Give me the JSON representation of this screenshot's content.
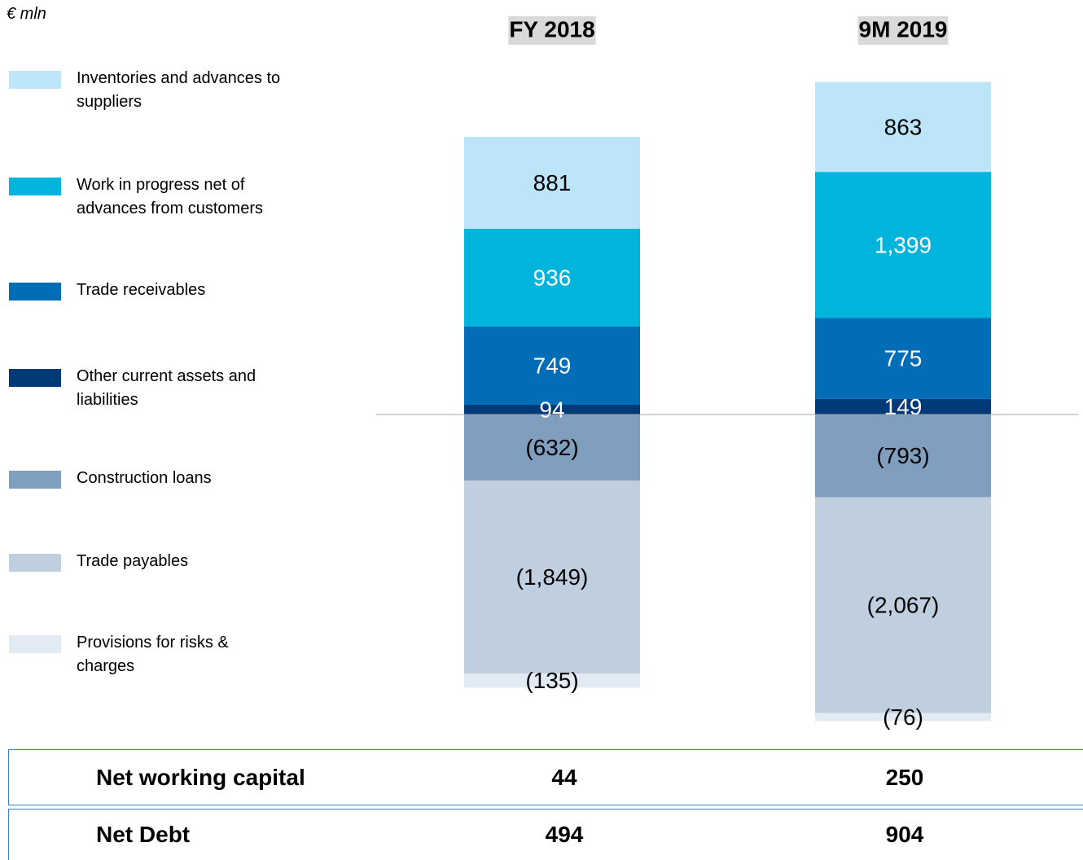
{
  "chart_data": {
    "type": "stacked_bar",
    "unit_label": "€ mln",
    "categories": [
      "FY 2018",
      "9M 2019"
    ],
    "series": [
      {
        "name": "Inventories and advances to suppliers",
        "color": "#bde5fa",
        "label_color": "#000000",
        "values": [
          881,
          863
        ],
        "value_labels": [
          "881",
          "863"
        ]
      },
      {
        "name": "Work in progress net of advances from customers",
        "color": "#00b4dc",
        "label_color": "#ffffff",
        "values": [
          936,
          1399
        ],
        "value_labels": [
          "936",
          "1,399"
        ]
      },
      {
        "name": "Trade receivables",
        "color": "#006db6",
        "label_color": "#ffffff",
        "values": [
          749,
          775
        ],
        "value_labels": [
          "749",
          "775"
        ]
      },
      {
        "name": "Other current assets and liabilities",
        "color": "#003a78",
        "label_color": "#ffffff",
        "values": [
          94,
          149
        ],
        "value_labels": [
          "94",
          "149"
        ]
      },
      {
        "name": "Construction loans",
        "color": "#809fbe",
        "label_color": "#000000",
        "values": [
          -632,
          -793
        ],
        "value_labels": [
          "(632)",
          "(793)"
        ]
      },
      {
        "name": "Trade payables",
        "color": "#bfcfdf",
        "label_color": "#000000",
        "values": [
          -1849,
          -2067
        ],
        "value_labels": [
          "(1,849)",
          "(2,067)"
        ]
      },
      {
        "name": "Provisions for risks & charges",
        "color": "#e2eaf3",
        "label_color": "#000000",
        "values": [
          -135,
          -76
        ],
        "value_labels": [
          "(135)",
          "(76)"
        ]
      }
    ]
  },
  "table": {
    "rows": [
      {
        "label": "Net working capital",
        "values": [
          44,
          250
        ]
      },
      {
        "label": "Net Debt",
        "values": [
          494,
          904
        ]
      }
    ]
  }
}
